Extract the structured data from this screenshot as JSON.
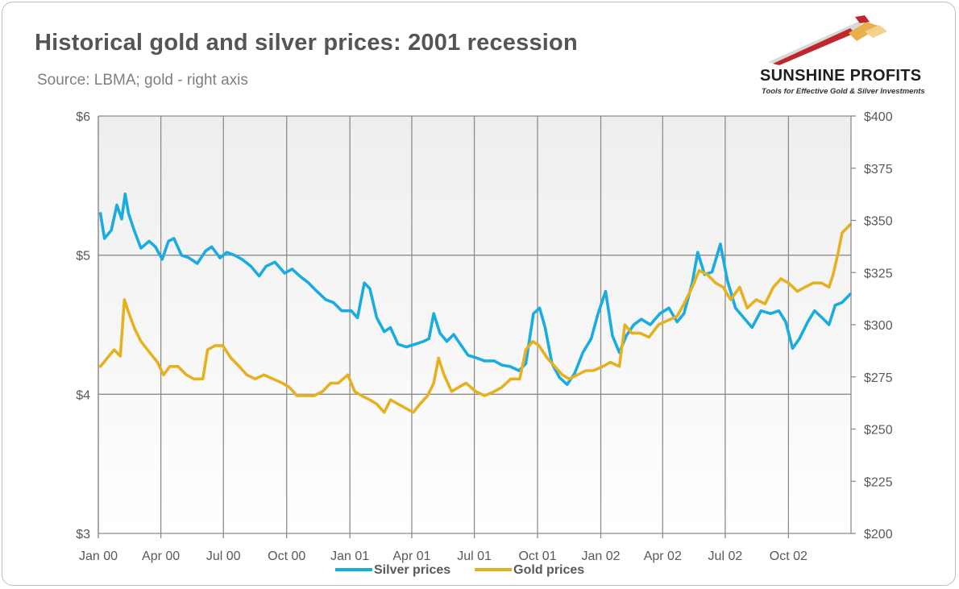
{
  "header": {
    "title": "Historical gold and silver prices: 2001 recession",
    "subtitle": "Source: LBMA; gold - right axis"
  },
  "logo": {
    "name": "SUNSHINE PROFITS",
    "tagline": "Tools for Effective Gold & Silver Investments",
    "icon": "rising-arrow-logo-icon",
    "colors": {
      "arrow_red": "#c0272d",
      "arrow_gold": "#e8b04a",
      "arrow_gray": "#d9d9d9"
    }
  },
  "chart_data": {
    "type": "line",
    "title": "Historical gold and silver prices: 2001 recession",
    "subtitle": "Source: LBMA; gold - right axis",
    "x_range": [
      "2000-01-01",
      "2002-12-31"
    ],
    "x_ticks": [
      {
        "date": "2000-01-01",
        "label": "Jan 00"
      },
      {
        "date": "2000-04-01",
        "label": "Apr 00"
      },
      {
        "date": "2000-07-01",
        "label": "Jul 00"
      },
      {
        "date": "2000-10-01",
        "label": "Oct 00"
      },
      {
        "date": "2001-01-01",
        "label": "Jan 01"
      },
      {
        "date": "2001-04-01",
        "label": "Apr 01"
      },
      {
        "date": "2001-07-01",
        "label": "Jul 01"
      },
      {
        "date": "2001-10-01",
        "label": "Oct 01"
      },
      {
        "date": "2002-01-01",
        "label": "Jan 02"
      },
      {
        "date": "2002-04-01",
        "label": "Apr 02"
      },
      {
        "date": "2002-07-01",
        "label": "Jul 02"
      },
      {
        "date": "2002-10-01",
        "label": "Oct 02"
      }
    ],
    "y_left": {
      "range": [
        3,
        6
      ],
      "ticks": [
        {
          "v": 3,
          "label": "$3"
        },
        {
          "v": 4,
          "label": "$4"
        },
        {
          "v": 5,
          "label": "$5"
        },
        {
          "v": 6,
          "label": "$6"
        }
      ]
    },
    "y_right": {
      "range": [
        200,
        400
      ],
      "ticks": [
        {
          "v": 200,
          "label": "$200"
        },
        {
          "v": 225,
          "label": "$225"
        },
        {
          "v": 250,
          "label": "$250"
        },
        {
          "v": 275,
          "label": "$275"
        },
        {
          "v": 300,
          "label": "$300"
        },
        {
          "v": 325,
          "label": "$325"
        },
        {
          "v": 350,
          "label": "$350"
        },
        {
          "v": 375,
          "label": "$375"
        },
        {
          "v": 400,
          "label": "$400"
        }
      ]
    },
    "grid": true,
    "legend": "bottom",
    "series": [
      {
        "name": "Silver prices",
        "axis": "left",
        "color": "#1aace0",
        "points": [
          [
            "2000-01-04",
            5.3
          ],
          [
            "2000-01-10",
            5.12
          ],
          [
            "2000-01-20",
            5.18
          ],
          [
            "2000-01-28",
            5.36
          ],
          [
            "2000-02-04",
            5.26
          ],
          [
            "2000-02-09",
            5.44
          ],
          [
            "2000-02-14",
            5.3
          ],
          [
            "2000-02-22",
            5.18
          ],
          [
            "2000-03-03",
            5.05
          ],
          [
            "2000-03-15",
            5.1
          ],
          [
            "2000-03-24",
            5.06
          ],
          [
            "2000-04-03",
            4.97
          ],
          [
            "2000-04-12",
            5.1
          ],
          [
            "2000-04-20",
            5.12
          ],
          [
            "2000-05-01",
            5.0
          ],
          [
            "2000-05-12",
            4.98
          ],
          [
            "2000-05-24",
            4.94
          ],
          [
            "2000-06-05",
            5.03
          ],
          [
            "2000-06-14",
            5.06
          ],
          [
            "2000-06-26",
            4.98
          ],
          [
            "2000-07-06",
            5.02
          ],
          [
            "2000-07-17",
            5.0
          ],
          [
            "2000-07-28",
            4.97
          ],
          [
            "2000-08-10",
            4.92
          ],
          [
            "2000-08-22",
            4.85
          ],
          [
            "2000-09-01",
            4.92
          ],
          [
            "2000-09-14",
            4.95
          ],
          [
            "2000-09-28",
            4.87
          ],
          [
            "2000-10-09",
            4.9
          ],
          [
            "2000-10-20",
            4.85
          ],
          [
            "2000-11-02",
            4.8
          ],
          [
            "2000-11-14",
            4.74
          ],
          [
            "2000-11-27",
            4.68
          ],
          [
            "2000-12-08",
            4.66
          ],
          [
            "2000-12-20",
            4.6
          ],
          [
            "2001-01-03",
            4.6
          ],
          [
            "2001-01-12",
            4.55
          ],
          [
            "2001-01-22",
            4.8
          ],
          [
            "2001-01-30",
            4.76
          ],
          [
            "2001-02-09",
            4.55
          ],
          [
            "2001-02-20",
            4.45
          ],
          [
            "2001-03-01",
            4.48
          ],
          [
            "2001-03-12",
            4.36
          ],
          [
            "2001-03-24",
            4.34
          ],
          [
            "2001-04-06",
            4.36
          ],
          [
            "2001-04-18",
            4.38
          ],
          [
            "2001-04-26",
            4.4
          ],
          [
            "2001-05-03",
            4.58
          ],
          [
            "2001-05-12",
            4.44
          ],
          [
            "2001-05-22",
            4.38
          ],
          [
            "2001-06-01",
            4.43
          ],
          [
            "2001-06-12",
            4.35
          ],
          [
            "2001-06-22",
            4.28
          ],
          [
            "2001-07-05",
            4.26
          ],
          [
            "2001-07-16",
            4.24
          ],
          [
            "2001-07-30",
            4.24
          ],
          [
            "2001-08-10",
            4.21
          ],
          [
            "2001-08-22",
            4.2
          ],
          [
            "2001-09-04",
            4.17
          ],
          [
            "2001-09-14",
            4.22
          ],
          [
            "2001-09-25",
            4.58
          ],
          [
            "2001-10-04",
            4.62
          ],
          [
            "2001-10-12",
            4.48
          ],
          [
            "2001-10-22",
            4.22
          ],
          [
            "2001-11-02",
            4.12
          ],
          [
            "2001-11-13",
            4.07
          ],
          [
            "2001-11-24",
            4.15
          ],
          [
            "2001-12-06",
            4.3
          ],
          [
            "2001-12-18",
            4.4
          ],
          [
            "2001-12-28",
            4.58
          ],
          [
            "2002-01-08",
            4.74
          ],
          [
            "2002-01-18",
            4.42
          ],
          [
            "2002-01-28",
            4.3
          ],
          [
            "2002-02-07",
            4.42
          ],
          [
            "2002-02-18",
            4.5
          ],
          [
            "2002-03-01",
            4.54
          ],
          [
            "2002-03-14",
            4.5
          ],
          [
            "2002-03-28",
            4.58
          ],
          [
            "2002-04-10",
            4.62
          ],
          [
            "2002-04-22",
            4.52
          ],
          [
            "2002-05-02",
            4.58
          ],
          [
            "2002-05-14",
            4.8
          ],
          [
            "2002-05-22",
            5.02
          ],
          [
            "2002-06-01",
            4.86
          ],
          [
            "2002-06-12",
            4.88
          ],
          [
            "2002-06-24",
            5.08
          ],
          [
            "2002-07-04",
            4.82
          ],
          [
            "2002-07-16",
            4.62
          ],
          [
            "2002-07-28",
            4.55
          ],
          [
            "2002-08-09",
            4.48
          ],
          [
            "2002-08-22",
            4.6
          ],
          [
            "2002-09-05",
            4.58
          ],
          [
            "2002-09-17",
            4.6
          ],
          [
            "2002-09-27",
            4.52
          ],
          [
            "2002-10-07",
            4.33
          ],
          [
            "2002-10-17",
            4.4
          ],
          [
            "2002-10-29",
            4.52
          ],
          [
            "2002-11-08",
            4.6
          ],
          [
            "2002-11-19",
            4.55
          ],
          [
            "2002-11-29",
            4.5
          ],
          [
            "2002-12-08",
            4.64
          ],
          [
            "2002-12-18",
            4.66
          ],
          [
            "2002-12-30",
            4.72
          ]
        ]
      },
      {
        "name": "Gold prices",
        "axis": "right",
        "color": "#e6b121",
        "points": [
          [
            "2000-01-04",
            280
          ],
          [
            "2000-01-14",
            284
          ],
          [
            "2000-01-24",
            288
          ],
          [
            "2000-02-02",
            285
          ],
          [
            "2000-02-08",
            312
          ],
          [
            "2000-02-14",
            306
          ],
          [
            "2000-02-23",
            298
          ],
          [
            "2000-03-03",
            292
          ],
          [
            "2000-03-15",
            287
          ],
          [
            "2000-03-27",
            282
          ],
          [
            "2000-04-05",
            276
          ],
          [
            "2000-04-14",
            280
          ],
          [
            "2000-04-26",
            280
          ],
          [
            "2000-05-08",
            276
          ],
          [
            "2000-05-19",
            274
          ],
          [
            "2000-06-01",
            274
          ],
          [
            "2000-06-08",
            288
          ],
          [
            "2000-06-19",
            290
          ],
          [
            "2000-06-30",
            290
          ],
          [
            "2000-07-12",
            284
          ],
          [
            "2000-07-24",
            280
          ],
          [
            "2000-08-04",
            276
          ],
          [
            "2000-08-16",
            274
          ],
          [
            "2000-08-29",
            276
          ],
          [
            "2000-09-11",
            274
          ],
          [
            "2000-09-25",
            272
          ],
          [
            "2000-10-05",
            270
          ],
          [
            "2000-10-16",
            266
          ],
          [
            "2000-10-30",
            266
          ],
          [
            "2000-11-10",
            266
          ],
          [
            "2000-11-22",
            268
          ],
          [
            "2000-12-04",
            272
          ],
          [
            "2000-12-15",
            272
          ],
          [
            "2000-12-29",
            276
          ],
          [
            "2001-01-08",
            268
          ],
          [
            "2001-01-18",
            266
          ],
          [
            "2001-01-30",
            264
          ],
          [
            "2001-02-09",
            262
          ],
          [
            "2001-02-20",
            258
          ],
          [
            "2001-03-01",
            264
          ],
          [
            "2001-03-12",
            262
          ],
          [
            "2001-03-23",
            260
          ],
          [
            "2001-04-03",
            258
          ],
          [
            "2001-04-13",
            262
          ],
          [
            "2001-04-24",
            266
          ],
          [
            "2001-05-03",
            272
          ],
          [
            "2001-05-10",
            284
          ],
          [
            "2001-05-18",
            276
          ],
          [
            "2001-05-29",
            268
          ],
          [
            "2001-06-08",
            270
          ],
          [
            "2001-06-19",
            272
          ],
          [
            "2001-07-03",
            268
          ],
          [
            "2001-07-16",
            266
          ],
          [
            "2001-07-30",
            268
          ],
          [
            "2001-08-10",
            270
          ],
          [
            "2001-08-23",
            274
          ],
          [
            "2001-09-05",
            274
          ],
          [
            "2001-09-14",
            288
          ],
          [
            "2001-09-24",
            292
          ],
          [
            "2001-10-03",
            290
          ],
          [
            "2001-10-15",
            284
          ],
          [
            "2001-10-26",
            280
          ],
          [
            "2001-11-06",
            276
          ],
          [
            "2001-11-16",
            274
          ],
          [
            "2001-11-28",
            276
          ],
          [
            "2001-12-10",
            278
          ],
          [
            "2001-12-21",
            278
          ],
          [
            "2002-01-04",
            280
          ],
          [
            "2002-01-15",
            282
          ],
          [
            "2002-01-28",
            280
          ],
          [
            "2002-02-05",
            300
          ],
          [
            "2002-02-15",
            296
          ],
          [
            "2002-02-27",
            296
          ],
          [
            "2002-03-12",
            294
          ],
          [
            "2002-03-26",
            300
          ],
          [
            "2002-04-08",
            302
          ],
          [
            "2002-04-22",
            304
          ],
          [
            "2002-05-02",
            310
          ],
          [
            "2002-05-14",
            318
          ],
          [
            "2002-05-24",
            326
          ],
          [
            "2002-06-05",
            324
          ],
          [
            "2002-06-17",
            320
          ],
          [
            "2002-06-28",
            318
          ],
          [
            "2002-07-09",
            312
          ],
          [
            "2002-07-22",
            318
          ],
          [
            "2002-08-02",
            308
          ],
          [
            "2002-08-15",
            312
          ],
          [
            "2002-08-28",
            310
          ],
          [
            "2002-09-09",
            318
          ],
          [
            "2002-09-20",
            322
          ],
          [
            "2002-10-01",
            320
          ],
          [
            "2002-10-14",
            316
          ],
          [
            "2002-10-25",
            318
          ],
          [
            "2002-11-06",
            320
          ],
          [
            "2002-11-18",
            320
          ],
          [
            "2002-11-29",
            318
          ],
          [
            "2002-12-05",
            324
          ],
          [
            "2002-12-12",
            334
          ],
          [
            "2002-12-18",
            344
          ],
          [
            "2002-12-30",
            348
          ]
        ]
      }
    ]
  }
}
